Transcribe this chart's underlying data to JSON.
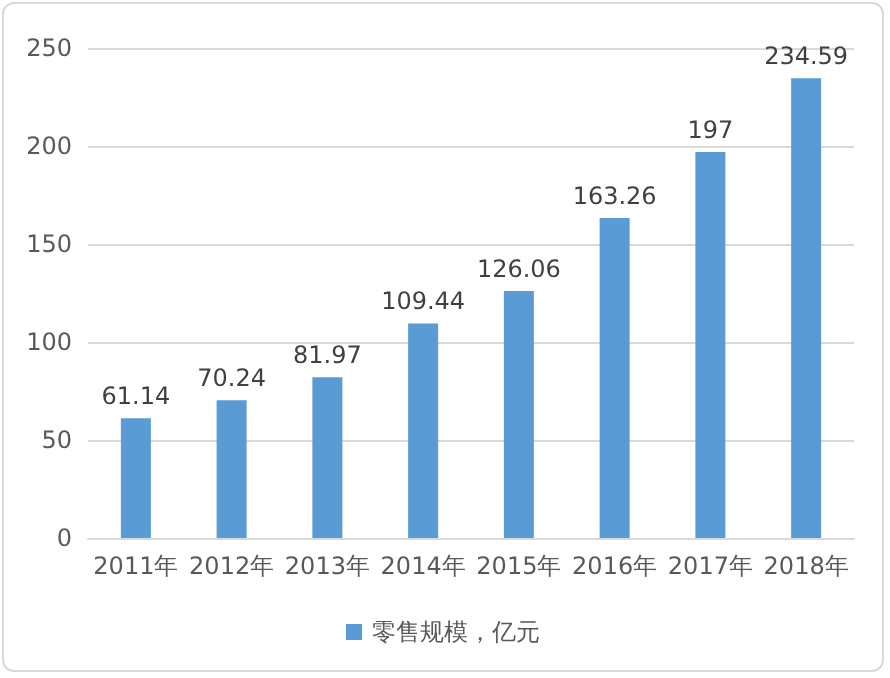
{
  "chart_data": {
    "type": "bar",
    "categories": [
      "2011年",
      "2012年",
      "2013年",
      "2014年",
      "2015年",
      "2016年",
      "2017年",
      "2018年"
    ],
    "series": [
      {
        "name": "零售规模，亿元",
        "color": "#5b9bd5",
        "values": [
          61.14,
          70.24,
          81.97,
          109.44,
          126.06,
          163.26,
          197,
          234.59
        ]
      }
    ],
    "ylim": [
      0,
      250
    ],
    "yticks": [
      0,
      50,
      100,
      150,
      200,
      250
    ],
    "grid": "y",
    "legend": "bottom",
    "data_labels": true
  }
}
